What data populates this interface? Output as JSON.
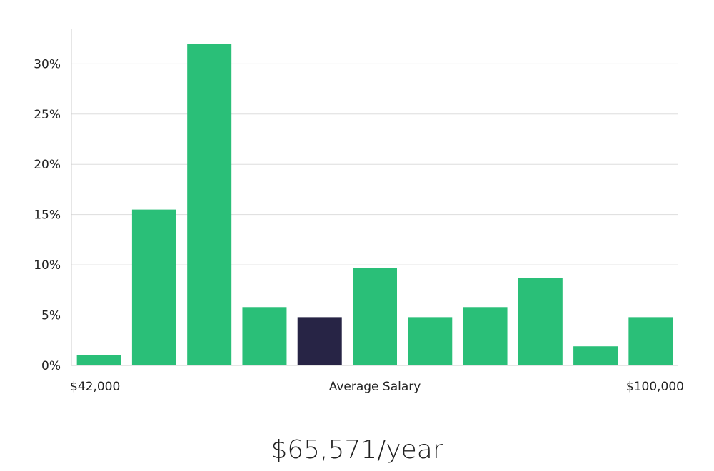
{
  "chart_data": {
    "type": "bar",
    "values": [
      1,
      15.5,
      32,
      5.8,
      4.8,
      9.7,
      4.8,
      5.8,
      8.7,
      1.9,
      4.8
    ],
    "highlight_index": 4,
    "y_ticks": [
      "0%",
      "5%",
      "10%",
      "15%",
      "20%",
      "25%",
      "30%"
    ],
    "y_tick_values": [
      0,
      5,
      10,
      15,
      20,
      25,
      30
    ],
    "ylim": [
      0,
      33.5
    ],
    "x_labels": {
      "left": "$42,000",
      "center": "Average Salary",
      "right": "$100,000"
    },
    "grid": true,
    "colors": {
      "bar": "#2abf78",
      "highlight": "#272445",
      "grid": "#dddddd",
      "axis": "#cccccc"
    }
  },
  "salary": {
    "readout": "$65,571/year"
  }
}
